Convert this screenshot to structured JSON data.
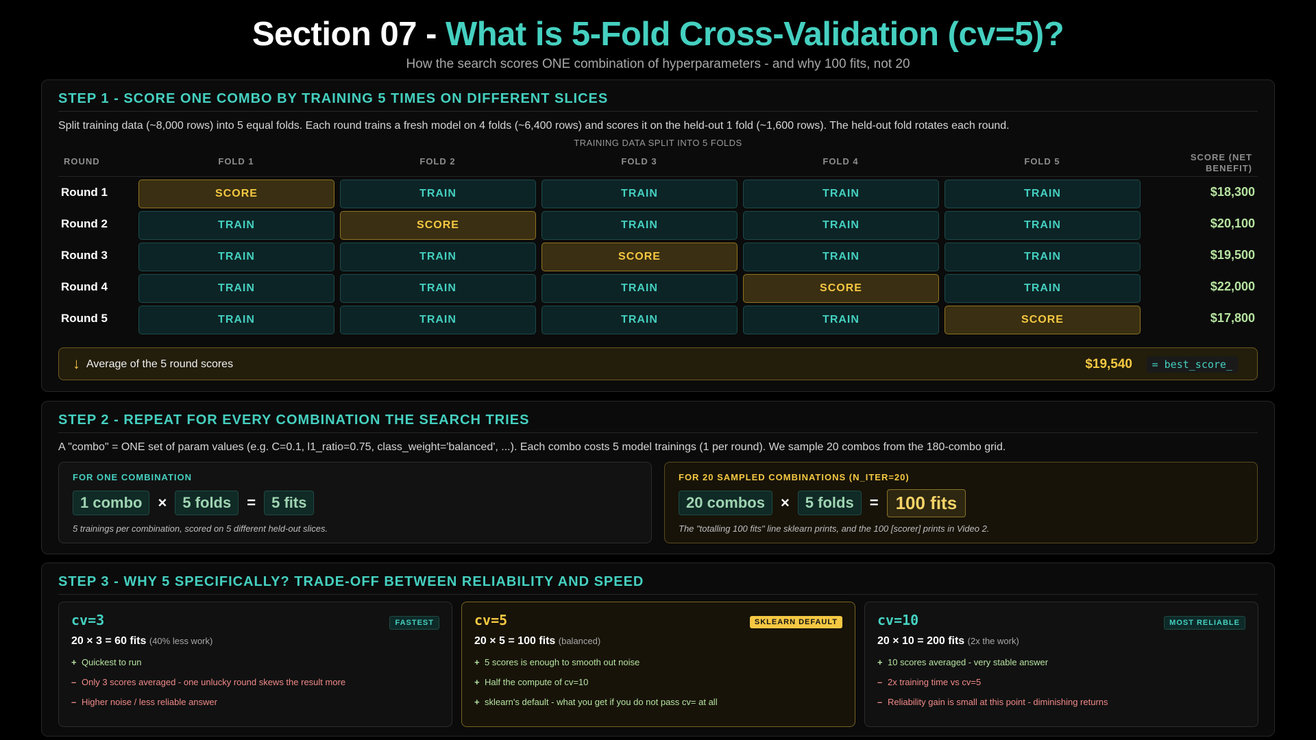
{
  "header": {
    "title_prefix": "Section 07 - ",
    "title_accent": "What is 5-Fold Cross-Validation (cv=5)?",
    "subtitle": "How the search scores ONE combination of hyperparameters - and why 100 fits, not 20"
  },
  "step1": {
    "title": "STEP 1 - SCORE ONE COMBO BY TRAINING 5 TIMES ON DIFFERENT SLICES",
    "description": "Split training data (~8,000 rows) into 5 equal folds. Each round trains a fresh model on 4 folds (~6,400 rows) and scores it on the held-out 1 fold (~1,600 rows). The held-out fold rotates each round.",
    "split_caption": "TRAINING DATA SPLIT INTO 5 FOLDS",
    "col_round": "ROUND",
    "folds": [
      "FOLD 1",
      "FOLD 2",
      "FOLD 3",
      "FOLD 4",
      "FOLD 5"
    ],
    "col_score_line1": "SCORE (NET",
    "col_score_line2": "BENEFIT)",
    "train_label": "TRAIN",
    "score_label": "SCORE",
    "rounds": [
      {
        "label": "Round 1",
        "score_fold": 1,
        "score": "$18,300"
      },
      {
        "label": "Round 2",
        "score_fold": 2,
        "score": "$20,100"
      },
      {
        "label": "Round 3",
        "score_fold": 3,
        "score": "$19,500"
      },
      {
        "label": "Round 4",
        "score_fold": 4,
        "score": "$22,000"
      },
      {
        "label": "Round 5",
        "score_fold": 5,
        "score": "$17,800"
      }
    ],
    "average": {
      "arrow": "↓",
      "label": "Average of the 5 round scores",
      "value": "$19,540",
      "code": "= best_score_"
    }
  },
  "step2": {
    "title": "STEP 2 - REPEAT FOR EVERY COMBINATION THE SEARCH TRIES",
    "description": "A \"combo\" = ONE set of param values (e.g. C=0.1, l1_ratio=0.75, class_weight='balanced', ...). Each combo costs 5 model trainings (1 per round). We sample 20 combos from the 180-combo grid.",
    "one": {
      "title": "FOR ONE COMBINATION",
      "a": "1 combo",
      "op1": "×",
      "b": "5 folds",
      "op2": "=",
      "c": "5 fits",
      "note": "5 trainings per combination, scored on 5 different held-out slices."
    },
    "many": {
      "title": "FOR 20 SAMPLED COMBINATIONS (N_ITER=20)",
      "a": "20 combos",
      "op1": "×",
      "b": "5 folds",
      "op2": "=",
      "c": "100 fits",
      "note": "The \"totalling 100 fits\" line sklearn prints, and the 100 [scorer] prints in Video 2."
    }
  },
  "step3": {
    "title": "STEP 3 - WHY 5 SPECIFICALLY? TRADE-OFF BETWEEN RELIABILITY AND SPEED",
    "cards": [
      {
        "title": "cv=3",
        "badge": "FASTEST",
        "formula": "20 × 3 = 60 fits",
        "formula_note": "(40% less work)",
        "points": [
          {
            "sign": "+",
            "kind": "pro",
            "text": "Quickest to run"
          },
          {
            "sign": "–",
            "kind": "con",
            "text": "Only 3 scores averaged - one unlucky round skews the result more"
          },
          {
            "sign": "–",
            "kind": "con",
            "text": "Higher noise / less reliable answer"
          }
        ]
      },
      {
        "title": "cv=5",
        "badge": "SKLEARN DEFAULT",
        "formula": "20 × 5 = 100 fits",
        "formula_note": "(balanced)",
        "points": [
          {
            "sign": "+",
            "kind": "pro",
            "text": "5 scores is enough to smooth out noise"
          },
          {
            "sign": "+",
            "kind": "pro",
            "text": "Half the compute of cv=10"
          },
          {
            "sign": "+",
            "kind": "pro",
            "text": "sklearn's default - what you get if you do not pass cv= at all"
          }
        ]
      },
      {
        "title": "cv=10",
        "badge": "MOST RELIABLE",
        "formula": "20 × 10 = 200 fits",
        "formula_note": "(2x the work)",
        "points": [
          {
            "sign": "+",
            "kind": "pro",
            "text": "10 scores averaged - very stable answer"
          },
          {
            "sign": "–",
            "kind": "con",
            "text": "2x training time vs cv=5"
          },
          {
            "sign": "–",
            "kind": "con",
            "text": "Reliability gain is small at this point - diminishing returns"
          }
        ]
      }
    ]
  }
}
